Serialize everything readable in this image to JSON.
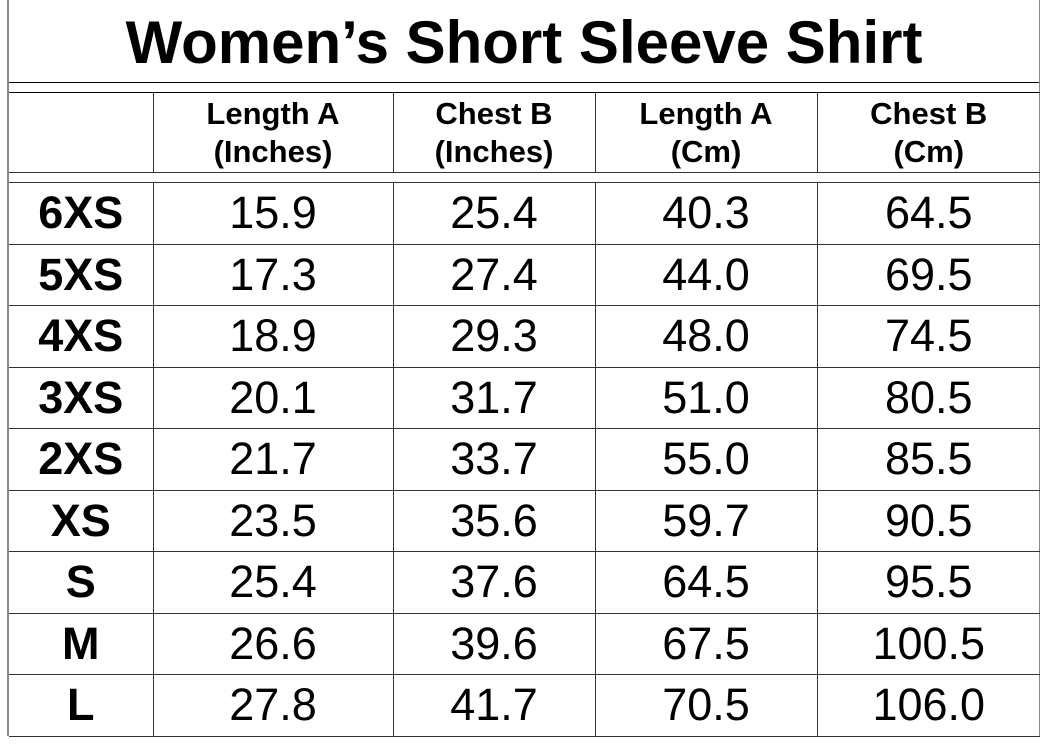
{
  "title": "Women’s Short Sleeve Shirt",
  "columns": [
    {
      "line1": "Length A",
      "line2": "(Inches)"
    },
    {
      "line1": "Chest B",
      "line2": "(Inches)"
    },
    {
      "line1": "Length A",
      "line2": "(Cm)"
    },
    {
      "line1": "Chest B",
      "line2": "(Cm)"
    }
  ],
  "rows": [
    {
      "size": "6XS",
      "values": [
        "15.9",
        "25.4",
        "40.3",
        "64.5"
      ]
    },
    {
      "size": "5XS",
      "values": [
        "17.3",
        "27.4",
        "44.0",
        "69.5"
      ]
    },
    {
      "size": "4XS",
      "values": [
        "18.9",
        "29.3",
        "48.0",
        "74.5"
      ]
    },
    {
      "size": "3XS",
      "values": [
        "20.1",
        "31.7",
        "51.0",
        "80.5"
      ]
    },
    {
      "size": "2XS",
      "values": [
        "21.7",
        "33.7",
        "55.0",
        "85.5"
      ]
    },
    {
      "size": "XS",
      "values": [
        "23.5",
        "35.6",
        "59.7",
        "90.5"
      ]
    },
    {
      "size": "S",
      "values": [
        "25.4",
        "37.6",
        "64.5",
        "95.5"
      ]
    },
    {
      "size": "M",
      "values": [
        "26.6",
        "39.6",
        "67.5",
        "100.5"
      ]
    },
    {
      "size": "L",
      "values": [
        "27.8",
        "41.7",
        "70.5",
        "106.0"
      ]
    }
  ]
}
